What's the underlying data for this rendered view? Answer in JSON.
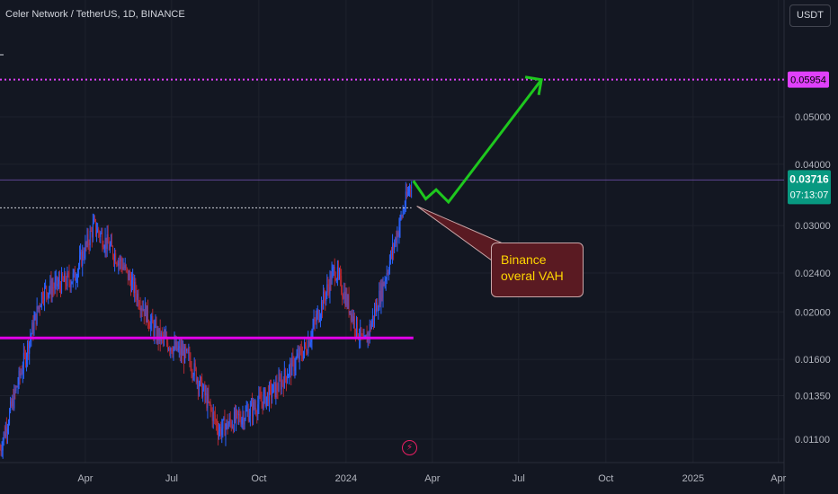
{
  "header": {
    "symbol_title": "Celer Network / TetherUS, 1D, BINANCE",
    "currency": "USDT"
  },
  "colors": {
    "background": "#131722",
    "candle_up": "#2962ff",
    "candle_down": "#b22833",
    "target_line": "#e040fb",
    "support_line": "#e100e8",
    "arrow": "#1ec81e",
    "price_label": "#089981",
    "callout_bg": "#5a1a22",
    "callout_text": "#ffd600"
  },
  "annotations": {
    "callout_line1": "Binance",
    "callout_line2": "overal VAH",
    "flash_icon": "lightning-bolt-icon"
  },
  "chart_data": {
    "type": "candlestick",
    "symbol": "Celer Network / TetherUS",
    "interval": "1D",
    "exchange": "BINANCE",
    "y_scale": "log",
    "y_ticks": [
      "0.05000",
      "0.04000",
      "0.03000",
      "0.02400",
      "0.02000",
      "0.01600",
      "0.01350",
      "0.01100"
    ],
    "x_ticks": [
      "Apr",
      "Jul",
      "Oct",
      "2024",
      "Apr",
      "Jul",
      "Oct",
      "2025",
      "Apr"
    ],
    "current_price": "0.03716",
    "countdown": "07:13:07",
    "target_level": "0.05954",
    "support_level": 0.0177,
    "vah_level": 0.0326,
    "approx_close_path": [
      {
        "date": "2023-01-01",
        "close": 0.0105
      },
      {
        "date": "2023-02-15",
        "close": 0.022
      },
      {
        "date": "2023-03-20",
        "close": 0.0235
      },
      {
        "date": "2023-04-10",
        "close": 0.03
      },
      {
        "date": "2023-05-10",
        "close": 0.025
      },
      {
        "date": "2023-06-15",
        "close": 0.018
      },
      {
        "date": "2023-07-20",
        "close": 0.016
      },
      {
        "date": "2023-08-20",
        "close": 0.0115
      },
      {
        "date": "2023-09-20",
        "close": 0.0125
      },
      {
        "date": "2023-10-20",
        "close": 0.014
      },
      {
        "date": "2023-11-20",
        "close": 0.017
      },
      {
        "date": "2023-12-20",
        "close": 0.0245
      },
      {
        "date": "2024-01-20",
        "close": 0.017
      },
      {
        "date": "2024-02-10",
        "close": 0.023
      },
      {
        "date": "2024-03-10",
        "close": 0.0372
      }
    ],
    "projection_path": [
      {
        "date": "2024-03-12",
        "price": 0.037
      },
      {
        "date": "2024-03-25",
        "price": 0.034
      },
      {
        "date": "2024-04-05",
        "price": 0.0355
      },
      {
        "date": "2024-04-18",
        "price": 0.0335
      },
      {
        "date": "2024-07-25",
        "price": 0.0595
      }
    ]
  }
}
